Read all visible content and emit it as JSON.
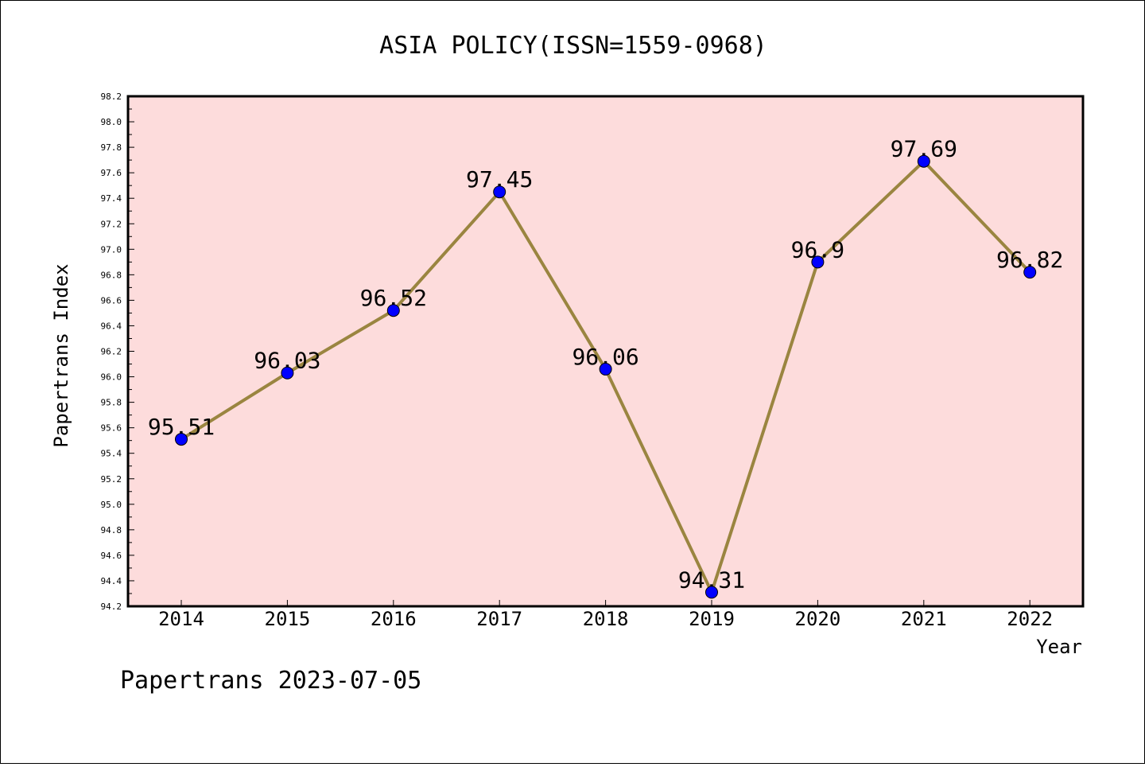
{
  "chart_data": {
    "type": "line",
    "title": "ASIA POLICY(ISSN=1559-0968)",
    "xlabel": "Year",
    "ylabel": "Papertrans Index",
    "categories": [
      "2014",
      "2015",
      "2016",
      "2017",
      "2018",
      "2019",
      "2020",
      "2021",
      "2022"
    ],
    "values": [
      95.51,
      96.03,
      96.52,
      97.45,
      96.06,
      94.31,
      96.9,
      97.69,
      96.82
    ],
    "data_labels": [
      "95.51",
      "96.03",
      "96.52",
      "97.45",
      "96.06",
      "94.31",
      "96.9",
      "97.69",
      "96.82"
    ],
    "ylim": [
      94.2,
      98.2
    ],
    "yticks": [
      "94.2",
      "94.4",
      "94.6",
      "94.8",
      "95.0",
      "95.2",
      "95.4",
      "95.6",
      "95.8",
      "96.0",
      "96.2",
      "96.4",
      "96.6",
      "96.8",
      "97.0",
      "97.2",
      "97.4",
      "97.6",
      "97.8",
      "98.0",
      "98.2"
    ],
    "grid": false,
    "legend": "none",
    "line_color": "#9a8540",
    "marker_color": "#0000ff",
    "plot_background": "#fddcdc"
  },
  "footer": {
    "text": "Papertrans 2023-07-05"
  }
}
